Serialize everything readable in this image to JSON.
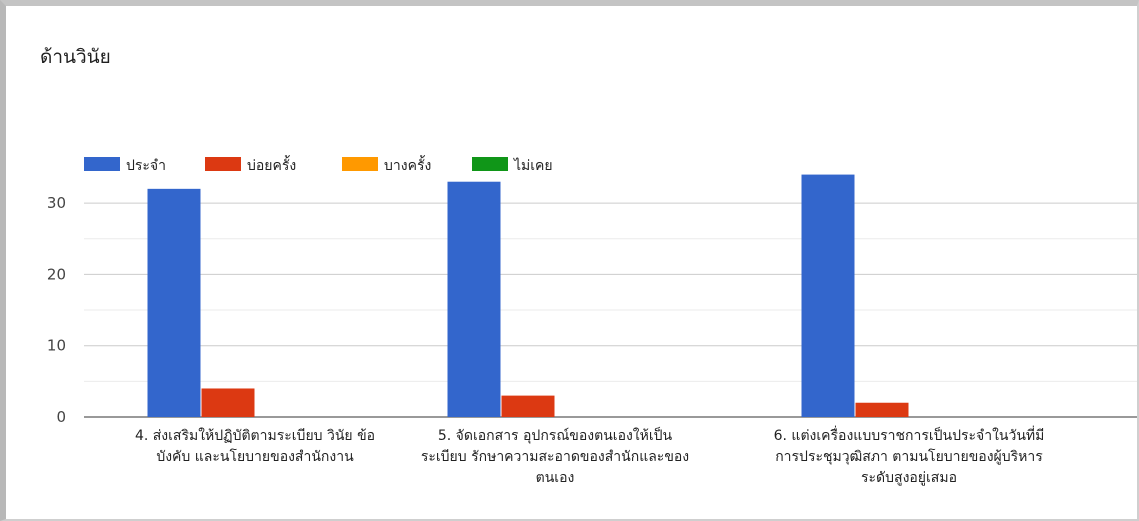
{
  "chart_data": {
    "type": "bar",
    "title": "ด้านวินัย",
    "categories": [
      [
        "4. ส่งเสริมให้ปฏิบัติตามระเบียบ วินัย ข้อ",
        "บังคับ และนโยบายของสำนักงาน"
      ],
      [
        "5. จัดเอกสาร อุปกรณ์ของตนเองให้เป็น",
        "ระเบียบ รักษาความสะอาดของสำนักและของ",
        "ตนเอง"
      ],
      [
        "6. แต่งเครื่องแบบราชการเป็นประจำในวันที่มี",
        "การประชุมวุฒิสภา ตามนโยบายของผู้บริหาร",
        "ระดับสูงอยู่เสมอ"
      ]
    ],
    "series": [
      {
        "name": "ประจำ",
        "color": "#3366cc",
        "values": [
          32,
          33,
          34
        ]
      },
      {
        "name": "บ่อยครั้ง",
        "color": "#dc3912",
        "values": [
          4,
          3,
          2
        ]
      },
      {
        "name": "บางครั้ง",
        "color": "#ff9900",
        "values": [
          0,
          0,
          0
        ]
      },
      {
        "name": "ไม่เคย",
        "color": "#109618",
        "values": [
          0,
          0,
          0
        ]
      }
    ],
    "ylim": [
      0,
      35
    ],
    "yticks": [
      0,
      10,
      20,
      30
    ],
    "legend_position": "top-left",
    "grid": true
  }
}
